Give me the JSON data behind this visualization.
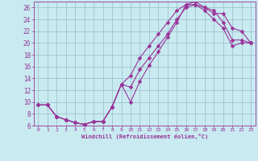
{
  "xlabel": "Windchill (Refroidissement éolien,°C)",
  "bg_color": "#c8eaf0",
  "line_color": "#993399",
  "grid_color": "#99bbcc",
  "xlim": [
    -0.5,
    23.5
  ],
  "ylim": [
    6,
    27
  ],
  "yticks": [
    6,
    8,
    10,
    12,
    14,
    16,
    18,
    20,
    22,
    24,
    26
  ],
  "xticks": [
    0,
    1,
    2,
    3,
    4,
    5,
    6,
    7,
    8,
    9,
    10,
    11,
    12,
    13,
    14,
    15,
    16,
    17,
    18,
    19,
    20,
    21,
    22,
    23
  ],
  "curve1_x": [
    0,
    1,
    2,
    3,
    4,
    5,
    5,
    6,
    7,
    8,
    9,
    10,
    11,
    12,
    13,
    14,
    15,
    16,
    17,
    18,
    19,
    20,
    21,
    22,
    23
  ],
  "curve1_y": [
    9.5,
    9.5,
    7.5,
    7.0,
    6.5,
    6.2,
    6.2,
    6.7,
    6.7,
    9.2,
    13.0,
    10.0,
    13.5,
    16.2,
    18.5,
    21.0,
    23.5,
    26.5,
    26.5,
    26.0,
    25.0,
    25.0,
    22.5,
    22.0,
    20.0
  ],
  "curve2_x": [
    0,
    1,
    2,
    3,
    4,
    5,
    5,
    6,
    7,
    8,
    9,
    10,
    11,
    12,
    13,
    14,
    15,
    16,
    17,
    18,
    19,
    20,
    21,
    22,
    23
  ],
  "curve2_y": [
    9.5,
    9.5,
    7.5,
    7.0,
    6.5,
    6.2,
    6.2,
    6.7,
    6.7,
    9.2,
    13.0,
    14.5,
    17.5,
    19.5,
    21.5,
    23.5,
    25.5,
    26.5,
    27.0,
    26.0,
    25.5,
    23.5,
    20.5,
    20.5,
    20.0
  ],
  "curve3_x": [
    0,
    1,
    2,
    3,
    4,
    5,
    5,
    6,
    7,
    8,
    9,
    10,
    11,
    12,
    13,
    14,
    15,
    16,
    17,
    18,
    19,
    20,
    21,
    22,
    23
  ],
  "curve3_y": [
    9.5,
    9.5,
    7.5,
    7.0,
    6.5,
    6.2,
    6.2,
    6.7,
    6.7,
    9.2,
    13.0,
    12.5,
    15.5,
    17.5,
    19.5,
    21.5,
    24.0,
    26.0,
    26.5,
    25.5,
    24.0,
    22.5,
    19.5,
    20.0,
    20.0
  ]
}
